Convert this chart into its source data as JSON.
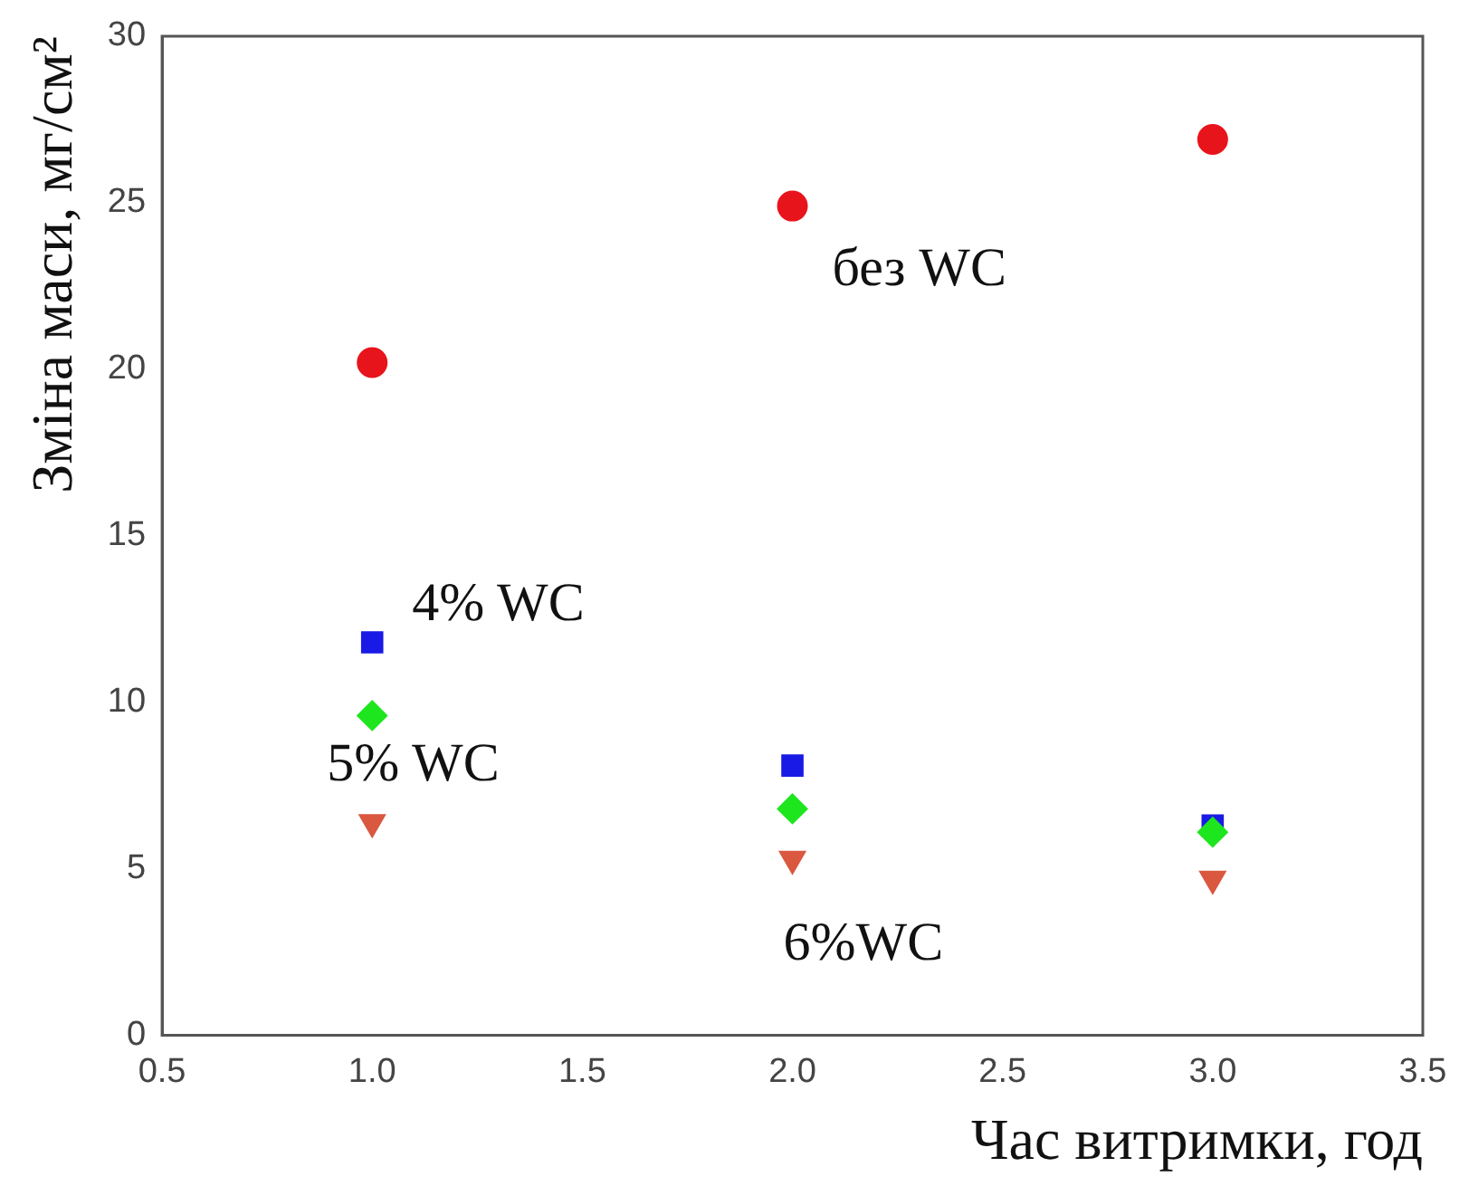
{
  "chart_data": {
    "type": "scatter",
    "xlabel": "Час витримки, год",
    "ylabel": "Зміна маси, мг/см²",
    "x": [
      1,
      2,
      3
    ],
    "series": [
      {
        "name": "без WC",
        "color": "#e8141c",
        "values": [
          20.2,
          24.9,
          26.9
        ],
        "marker": "circle"
      },
      {
        "name": "4% WC",
        "color": "#1a1ae6",
        "values": [
          11.8,
          8.1,
          6.3
        ],
        "marker": "square"
      },
      {
        "name": "5% WC",
        "color": "#1ee61e",
        "values": [
          9.6,
          6.8,
          6.1
        ],
        "marker": "diamond"
      },
      {
        "name": "6%WC",
        "color": "#d9583f",
        "values": [
          6.4,
          5.3,
          4.7
        ],
        "marker": "triangle"
      }
    ],
    "xlim": [
      0.5,
      3.5
    ],
    "xticks": [
      0.5,
      {
        "value": 1,
        "label": "1.0"
      },
      1.5,
      {
        "value": 2,
        "label": "2.0"
      },
      2.5,
      {
        "value": 3,
        "label": "3.0"
      },
      3.5
    ],
    "ylim": [
      0,
      30
    ],
    "yticks": [
      0,
      5,
      10,
      15,
      20,
      25,
      30
    ],
    "grid": false,
    "legend": false
  }
}
